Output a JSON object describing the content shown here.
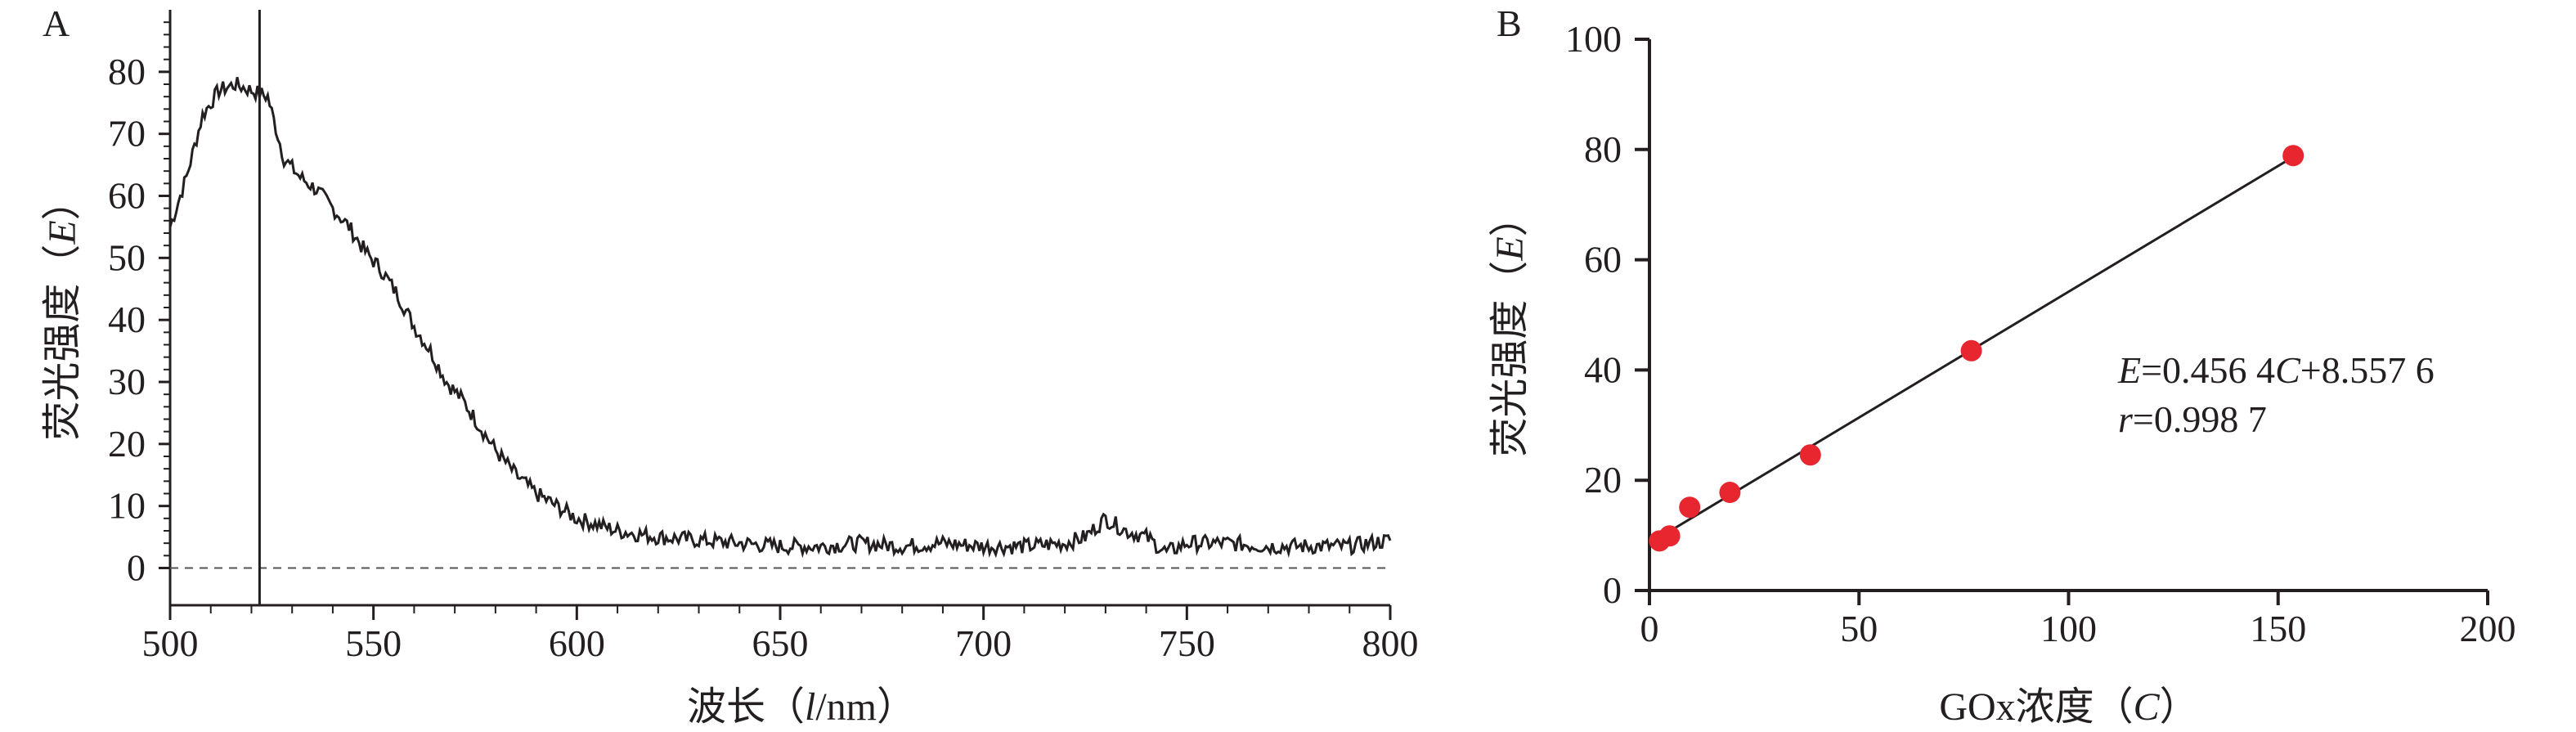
{
  "chart_data": [
    {
      "panel_label": "A",
      "type": "line",
      "xlabel_parts": [
        "波长（",
        "l",
        "/nm）"
      ],
      "ylabel_parts": [
        "荧光强度（",
        "E",
        "）"
      ],
      "xlim": [
        500,
        800
      ],
      "ylim": [
        -6,
        90
      ],
      "xticks": [
        "500",
        "550",
        "600",
        "650",
        "700",
        "750",
        "800"
      ],
      "yticks": [
        "0",
        "10",
        "20",
        "30",
        "40",
        "50",
        "60",
        "70",
        "80"
      ],
      "baseline_y": 0,
      "baseline_style": "dashed",
      "vertical_marker_x": 522,
      "series": [
        {
          "x": [
            500,
            504,
            508,
            512,
            516,
            520,
            524,
            528,
            532,
            536,
            540,
            544,
            548,
            552,
            556,
            560,
            564,
            568,
            572,
            576,
            580,
            585,
            590,
            595,
            600,
            605,
            610,
            615,
            620,
            630,
            640,
            650,
            660,
            670,
            680,
            690,
            700,
            710,
            720,
            725,
            730,
            735,
            740,
            745,
            750,
            760,
            770,
            780,
            790,
            800
          ],
          "values": [
            55,
            63,
            73,
            77,
            78,
            77,
            76,
            66,
            63,
            61,
            58,
            55,
            51,
            48,
            44,
            39,
            35,
            30,
            27,
            23,
            19,
            15,
            12,
            10,
            8,
            7,
            6,
            5.5,
            5,
            4.5,
            4,
            3.5,
            3.5,
            4,
            3.5,
            4,
            3.5,
            3.5,
            4,
            5,
            8,
            6,
            5,
            2.5,
            4,
            4,
            3.5,
            3.5,
            3.5,
            4.5
          ]
        }
      ]
    },
    {
      "panel_label": "B",
      "type": "scatter",
      "xlabel_parts": [
        "GOx浓度（",
        "C",
        "）"
      ],
      "ylabel_parts": [
        "荧光强度（",
        "E",
        "）"
      ],
      "xlim": [
        0,
        200
      ],
      "ylim": [
        0,
        100
      ],
      "xticks": [
        "0",
        "50",
        "100",
        "150",
        "200"
      ],
      "yticks": [
        "0",
        "20",
        "40",
        "60",
        "80",
        "100"
      ],
      "point_color": "#e8262f",
      "series": [
        {
          "x": [
            2.4,
            4.8,
            9.6,
            19.2,
            38.4,
            76.8,
            153.6
          ],
          "values": [
            9.0,
            9.9,
            15.1,
            17.8,
            24.6,
            43.5,
            78.9
          ]
        }
      ],
      "fit_line": {
        "slope": 0.4564,
        "intercept": 8.5576,
        "x_range": [
          2.4,
          153.6
        ]
      },
      "annotation": {
        "eq_var": "E",
        "eq_mid": "=0.456 4",
        "eq_var2": "C",
        "eq_end": "+8.557 6",
        "r_var": "r",
        "r_val": "=0.998 7"
      }
    }
  ]
}
